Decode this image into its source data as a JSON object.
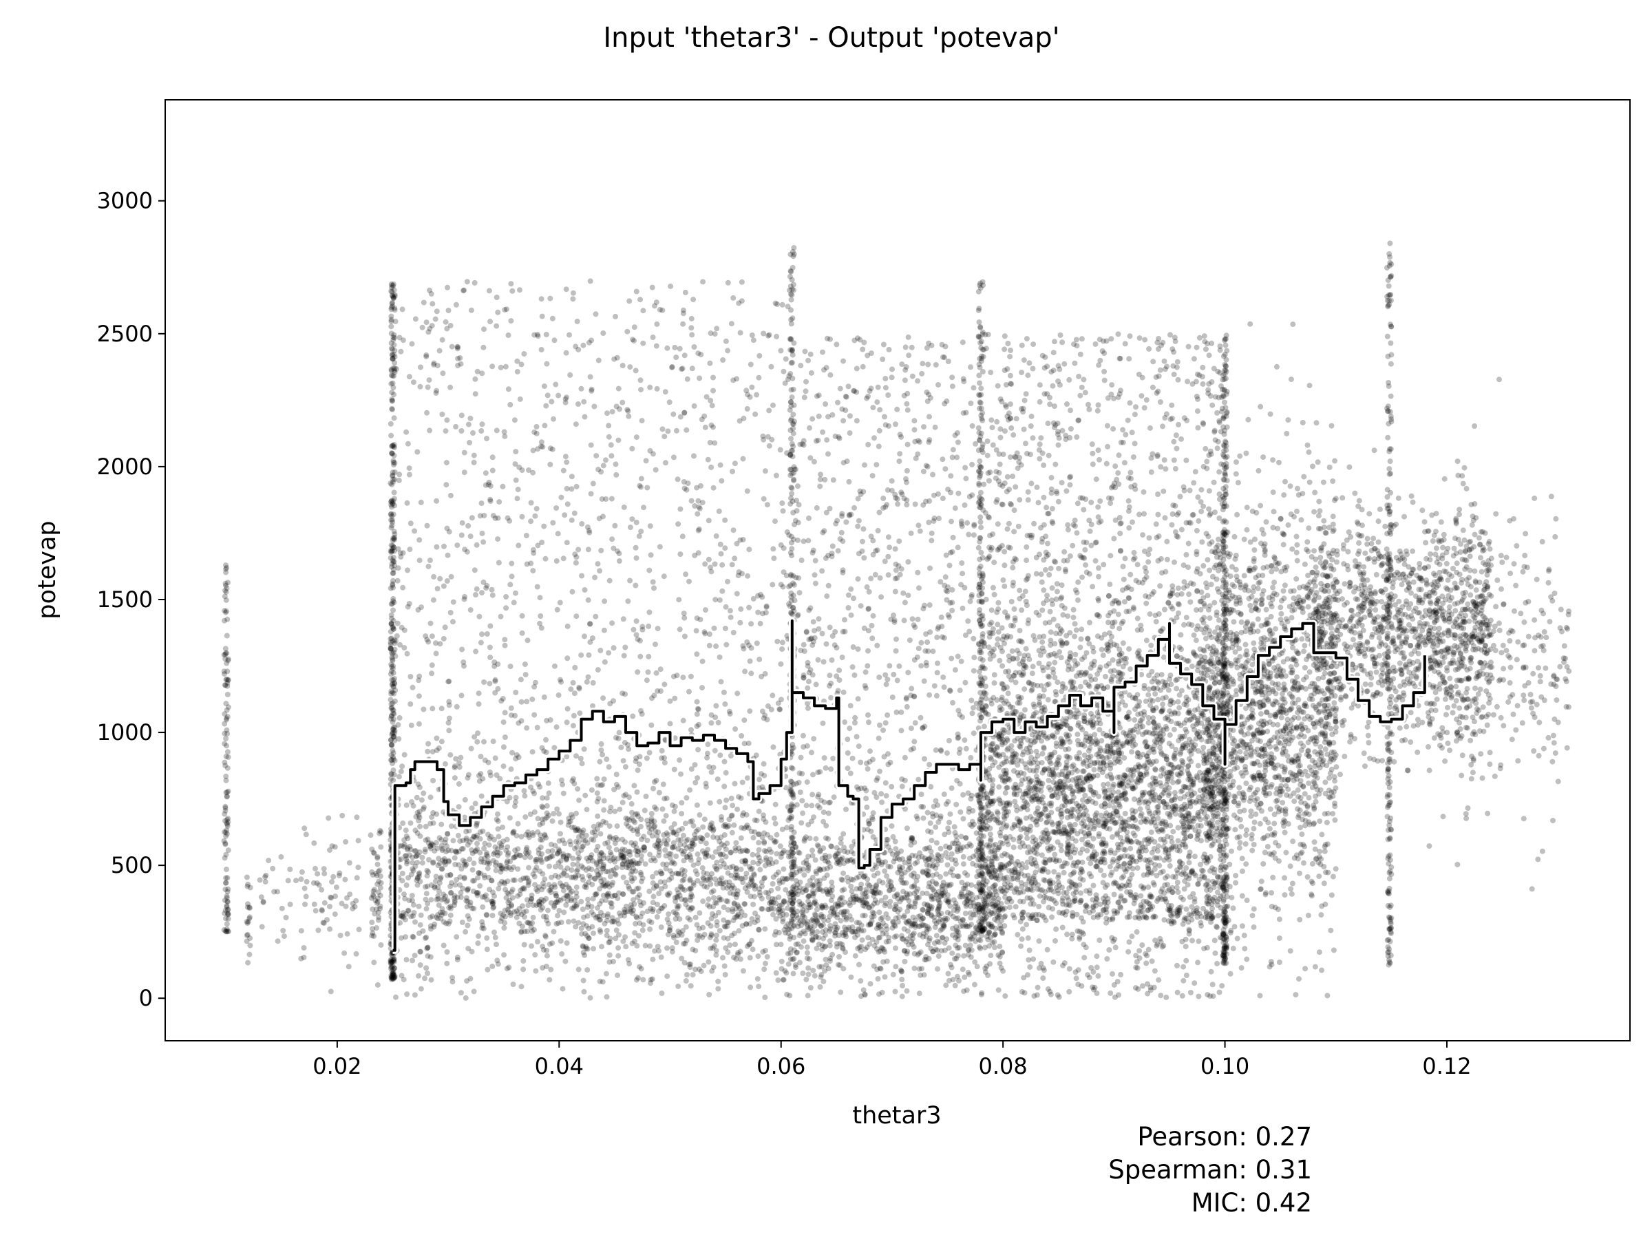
{
  "chart_data": {
    "type": "scatter",
    "title": "Input 'thetar3' - Output 'potevap'",
    "xlabel": "thetar3",
    "ylabel": "potevap",
    "xlim": [
      0.0045,
      0.1365
    ],
    "ylim": [
      -160,
      3380
    ],
    "x_ticks": [
      {
        "value": 0.02,
        "label": "0.02"
      },
      {
        "value": 0.04,
        "label": "0.04"
      },
      {
        "value": 0.06,
        "label": "0.06"
      },
      {
        "value": 0.08,
        "label": "0.08"
      },
      {
        "value": 0.1,
        "label": "0.10"
      },
      {
        "value": 0.12,
        "label": "0.12"
      }
    ],
    "y_ticks": [
      {
        "value": 0,
        "label": "0"
      },
      {
        "value": 500,
        "label": "500"
      },
      {
        "value": 1000,
        "label": "1000"
      },
      {
        "value": 1500,
        "label": "1500"
      },
      {
        "value": 2000,
        "label": "2000"
      },
      {
        "value": 2500,
        "label": "2500"
      },
      {
        "value": 3000,
        "label": "3000"
      }
    ],
    "grid": false,
    "point_color": "#000000",
    "point_alpha": 0.25,
    "scatter_clusters": [
      {
        "x": 0.01,
        "y_range": [
          250,
          1690
        ],
        "n": 120
      },
      {
        "x": 0.012,
        "y_center": 320,
        "y_spread": 80,
        "n": 20
      },
      {
        "x_range": [
          0.013,
          0.022
        ],
        "y_center": 400,
        "y_spread": 120,
        "n": 90
      },
      {
        "x_range": [
          0.023,
          0.024
        ],
        "y_center": 420,
        "y_spread": 140,
        "n": 50
      },
      {
        "x": 0.025,
        "y_range": [
          70,
          2690
        ],
        "n": 400
      },
      {
        "x_range": [
          0.025,
          0.06
        ],
        "y_center": 420,
        "y_spread": 170,
        "n": 1600
      },
      {
        "x_range": [
          0.06,
          0.08
        ],
        "y_center": 330,
        "y_spread": 140,
        "n": 1100
      },
      {
        "x_range": [
          0.025,
          0.062
        ],
        "y_range": [
          500,
          2700
        ],
        "n": 1400
      },
      {
        "x_range": [
          0.062,
          0.078
        ],
        "y_range": [
          500,
          2500
        ],
        "n": 800
      },
      {
        "x_range": [
          0.078,
          0.1
        ],
        "y_center": 800,
        "y_spread": 350,
        "n": 2200
      },
      {
        "x_range": [
          0.078,
          0.1
        ],
        "y_range": [
          300,
          2500
        ],
        "n": 1600
      },
      {
        "x_range": [
          0.098,
          0.11
        ],
        "y_center": 1100,
        "y_spread": 380,
        "n": 1600
      },
      {
        "x_range": [
          0.108,
          0.124
        ],
        "y_center": 1400,
        "y_spread": 220,
        "n": 1200
      },
      {
        "x_range": [
          0.118,
          0.131
        ],
        "y_center": 1250,
        "y_spread": 280,
        "n": 300
      },
      {
        "x": 0.061,
        "y_range": [
          290,
          2830
        ],
        "n": 200
      },
      {
        "x": 0.078,
        "y_range": [
          250,
          2700
        ],
        "n": 240
      },
      {
        "x": 0.1,
        "y_range": [
          130,
          2500
        ],
        "n": 320
      },
      {
        "x": 0.1148,
        "y_range": [
          120,
          2850
        ],
        "n": 200
      }
    ],
    "series": [
      {
        "type": "line",
        "x": [
          0.025,
          0.0252,
          0.0262,
          0.0266,
          0.027,
          0.028,
          0.029,
          0.0296,
          0.03,
          0.031,
          0.032,
          0.033,
          0.034,
          0.035,
          0.036,
          0.037,
          0.038,
          0.039,
          0.04,
          0.041,
          0.042,
          0.043,
          0.044,
          0.045,
          0.046,
          0.047,
          0.048,
          0.049,
          0.05,
          0.051,
          0.052,
          0.053,
          0.054,
          0.055,
          0.056,
          0.057,
          0.0575,
          0.058,
          0.059,
          0.06,
          0.0605,
          0.061,
          0.061,
          0.062,
          0.063,
          0.064,
          0.065,
          0.0652,
          0.066,
          0.0665,
          0.067,
          0.0675,
          0.068,
          0.069,
          0.07,
          0.071,
          0.072,
          0.073,
          0.074,
          0.075,
          0.076,
          0.077,
          0.078,
          0.078,
          0.079,
          0.08,
          0.081,
          0.082,
          0.083,
          0.084,
          0.085,
          0.086,
          0.087,
          0.088,
          0.089,
          0.09,
          0.09,
          0.091,
          0.092,
          0.093,
          0.094,
          0.095,
          0.095,
          0.096,
          0.097,
          0.098,
          0.099,
          0.1,
          0.1,
          0.101,
          0.102,
          0.103,
          0.104,
          0.105,
          0.106,
          0.107,
          0.108,
          0.109,
          0.11,
          0.111,
          0.112,
          0.113,
          0.114,
          0.115,
          0.116,
          0.117,
          0.118
        ],
        "y": [
          180,
          800,
          810,
          860,
          890,
          890,
          860,
          740,
          690,
          650,
          680,
          720,
          760,
          800,
          810,
          840,
          860,
          900,
          930,
          970,
          1050,
          1080,
          1040,
          1060,
          1000,
          950,
          960,
          1000,
          950,
          980,
          970,
          990,
          970,
          940,
          920,
          890,
          750,
          770,
          800,
          900,
          1000,
          1420,
          1150,
          1130,
          1100,
          1090,
          1130,
          800,
          760,
          750,
          490,
          500,
          560,
          680,
          730,
          750,
          800,
          850,
          880,
          880,
          860,
          880,
          820,
          1000,
          1040,
          1050,
          1000,
          1040,
          1020,
          1060,
          1100,
          1140,
          1100,
          1130,
          1080,
          1000,
          1170,
          1190,
          1250,
          1290,
          1350,
          1410,
          1260,
          1220,
          1180,
          1100,
          1050,
          880,
          1030,
          1120,
          1210,
          1290,
          1320,
          1360,
          1390,
          1410,
          1300,
          1300,
          1280,
          1200,
          1120,
          1060,
          1040,
          1050,
          1100,
          1150,
          1290
        ]
      }
    ],
    "stats": {
      "pearson": "Pearson: 0.27",
      "spearman": "Spearman: 0.31",
      "mic": "MIC: 0.42"
    }
  }
}
